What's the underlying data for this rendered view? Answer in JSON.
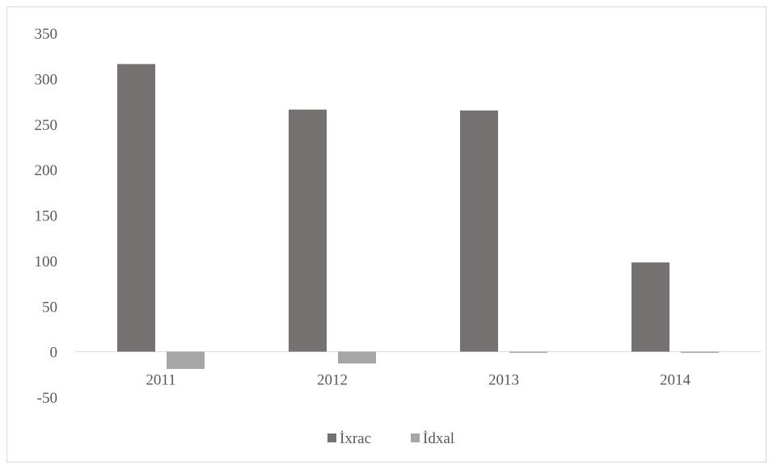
{
  "chart_data": {
    "type": "bar",
    "categories": [
      "2011",
      "2012",
      "2013",
      "2014"
    ],
    "series": [
      {
        "name": "İxrac",
        "values": [
          316,
          266,
          265,
          98
        ],
        "color": "#767171"
      },
      {
        "name": "İdxal",
        "values": [
          -19,
          -13,
          -1,
          -1
        ],
        "color": "#a6a6a6"
      }
    ],
    "ylim": [
      -50,
      350
    ],
    "yticks": [
      350,
      300,
      250,
      200,
      150,
      100,
      50,
      0,
      -50
    ],
    "grid": false,
    "legend_position": "bottom",
    "axis_color": "#d9d9d9"
  }
}
